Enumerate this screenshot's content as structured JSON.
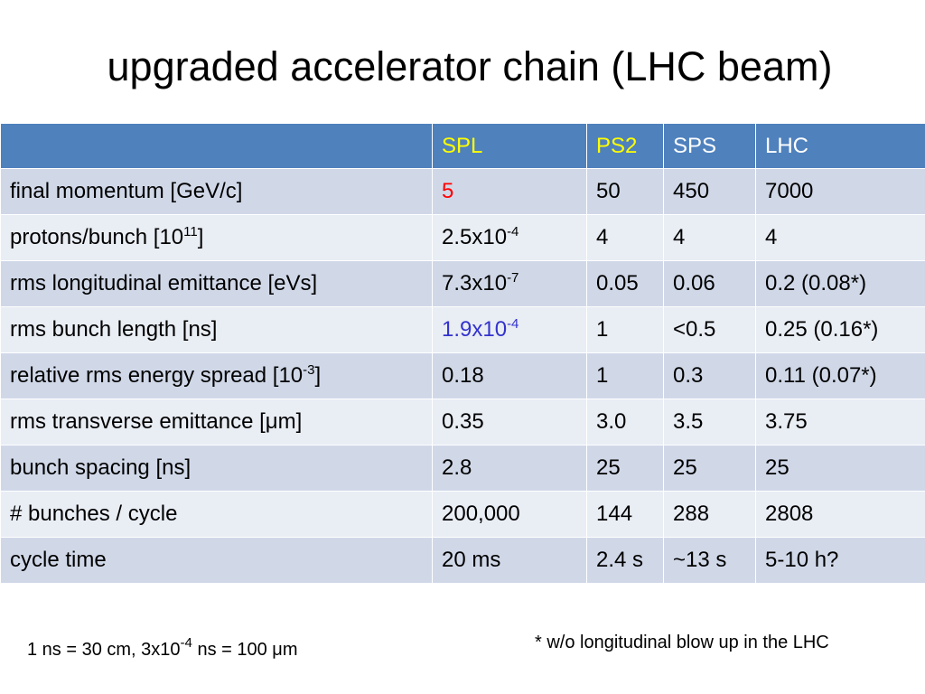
{
  "slide": {
    "title": "upgraded accelerator chain (LHC beam)"
  },
  "table": {
    "headers": [
      "",
      "SPL",
      "PS2",
      "SPS",
      "LHC"
    ],
    "rows": [
      {
        "label": "final momentum [GeV/c]",
        "spl": "5",
        "ps2": "50",
        "sps": "450",
        "lhc": "7000"
      },
      {
        "label": "protons/bunch [10",
        "label_sup": "11",
        "label_suffix": "]",
        "spl": "2.5x10",
        "spl_sup": "-4",
        "ps2": "4",
        "sps": "4",
        "lhc": "4"
      },
      {
        "label": "rms longitudinal emittance [eVs]",
        "spl": "7.3x10",
        "spl_sup": "-7",
        "ps2": "0.05",
        "sps": "0.06",
        "lhc": "0.2 (0.08*)"
      },
      {
        "label": "rms bunch length [ns]",
        "spl": "1.9x10",
        "spl_sup": "-4",
        "ps2": "1",
        "sps": "<0.5",
        "lhc": "0.25 (0.16*)"
      },
      {
        "label": "relative rms energy spread [10",
        "label_sup": "-3",
        "label_suffix": "]",
        "spl": "0.18",
        "ps2": "1",
        "sps": "0.3",
        "lhc": "0.11 (0.07*)"
      },
      {
        "label": "rms transverse emittance [μm]",
        "spl": "0.35",
        "ps2": "3.0",
        "sps": "3.5",
        "lhc": "3.75"
      },
      {
        "label": "bunch spacing [ns]",
        "spl": "2.8",
        "ps2": "25",
        "sps": "25",
        "lhc": "25"
      },
      {
        "label": "# bunches / cycle",
        "spl": "200,000",
        "ps2": "144",
        "sps": "288",
        "lhc": "2808"
      },
      {
        "label": "cycle time",
        "spl": "20 ms",
        "ps2": "2.4 s",
        "sps": "~13 s",
        "lhc": "5-10 h?"
      }
    ]
  },
  "footnotes": {
    "left_prefix": "1 ns = 30 cm,  3x10",
    "left_sup": "-4",
    "left_suffix": " ns = 100 μm",
    "right": "* w/o longitudinal blow up in the LHC"
  },
  "colors": {
    "header_bg": "#4f81bd",
    "row_dark": "#d0d8e8",
    "row_light": "#e9edf4",
    "highlight_yellow": "#ffff00",
    "highlight_red": "#ff0000",
    "highlight_blue": "#3333cc"
  }
}
